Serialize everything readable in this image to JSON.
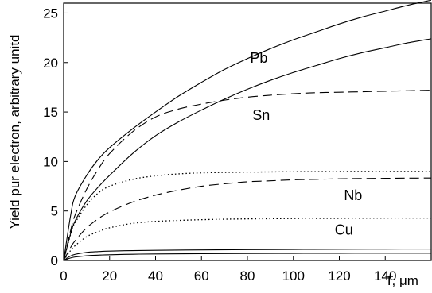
{
  "chart_data": {
    "type": "line",
    "title": "",
    "xlabel": "T, μm",
    "ylabel": "Yield pur electron, arbitrary unitd",
    "xlim": [
      0,
      160
    ],
    "ylim": [
      0,
      26
    ],
    "xticks": [
      "0",
      "20",
      "40",
      "60",
      "80",
      "100",
      "120",
      "140"
    ],
    "yticks": [
      "0",
      "5",
      "10",
      "15",
      "20",
      "25"
    ],
    "grid": false,
    "legend": "none",
    "labels": [
      {
        "text": "Pb",
        "x": 85,
        "y": 20.0
      },
      {
        "text": "Sn",
        "x": 86,
        "y": 14.2
      },
      {
        "text": "Nb",
        "x": 126,
        "y": 6.1
      },
      {
        "text": "Cu",
        "x": 122,
        "y": 2.6
      }
    ],
    "series": [
      {
        "style": "solid",
        "x": [
          0,
          3,
          5,
          10,
          15,
          20,
          30,
          40,
          50,
          60,
          70,
          80,
          90,
          100,
          110,
          120,
          130,
          140,
          150,
          160
        ],
        "y": [
          0,
          4.5,
          6.5,
          8.6,
          10.2,
          11.4,
          13.3,
          15.0,
          16.6,
          18.0,
          19.3,
          20.4,
          21.4,
          22.3,
          23.1,
          23.9,
          24.6,
          25.2,
          25.8,
          26.3
        ]
      },
      {
        "style": "solid",
        "x": [
          0,
          3,
          5,
          10,
          15,
          20,
          30,
          40,
          50,
          60,
          70,
          80,
          90,
          100,
          110,
          120,
          130,
          140,
          150,
          160
        ],
        "y": [
          0,
          2.7,
          4.0,
          6.0,
          7.4,
          8.6,
          10.8,
          12.6,
          14.0,
          15.2,
          16.3,
          17.3,
          18.2,
          19.0,
          19.7,
          20.4,
          21.0,
          21.5,
          22.0,
          22.4
        ]
      },
      {
        "style": "dashed",
        "x": [
          0,
          3,
          5,
          10,
          15,
          20,
          30,
          40,
          50,
          60,
          70,
          80,
          90,
          100,
          110,
          120,
          130,
          140,
          150,
          160
        ],
        "y": [
          0,
          3.0,
          4.6,
          7.2,
          9.2,
          10.8,
          13.0,
          14.5,
          15.3,
          15.8,
          16.2,
          16.5,
          16.7,
          16.85,
          16.95,
          17.0,
          17.05,
          17.1,
          17.15,
          17.2
        ]
      },
      {
        "style": "dotted",
        "x": [
          0,
          3,
          5,
          10,
          15,
          20,
          30,
          40,
          50,
          60,
          70,
          80,
          90,
          100,
          110,
          120,
          130,
          140,
          150,
          160
        ],
        "y": [
          0,
          2.6,
          3.8,
          5.6,
          6.8,
          7.5,
          8.2,
          8.55,
          8.75,
          8.85,
          8.9,
          8.93,
          8.95,
          8.97,
          8.98,
          8.99,
          9.0,
          9.0,
          9.0,
          9.0
        ]
      },
      {
        "style": "dashed",
        "x": [
          0,
          3,
          5,
          10,
          15,
          20,
          30,
          40,
          50,
          60,
          70,
          80,
          90,
          100,
          110,
          120,
          130,
          140,
          150,
          160
        ],
        "y": [
          0,
          1.3,
          2.0,
          3.3,
          4.2,
          4.9,
          5.9,
          6.6,
          7.1,
          7.5,
          7.75,
          7.95,
          8.05,
          8.15,
          8.2,
          8.25,
          8.28,
          8.3,
          8.32,
          8.33
        ]
      },
      {
        "style": "dotted",
        "x": [
          0,
          3,
          5,
          10,
          15,
          20,
          30,
          40,
          50,
          60,
          70,
          80,
          90,
          100,
          110,
          120,
          130,
          140,
          150,
          160
        ],
        "y": [
          0,
          1.0,
          1.5,
          2.4,
          2.9,
          3.3,
          3.75,
          3.95,
          4.05,
          4.12,
          4.17,
          4.2,
          4.22,
          4.24,
          4.25,
          4.26,
          4.27,
          4.28,
          4.28,
          4.28
        ]
      },
      {
        "style": "solid",
        "x": [
          0,
          3,
          5,
          10,
          15,
          20,
          30,
          40,
          60,
          80,
          100,
          120,
          140,
          160
        ],
        "y": [
          0,
          0.45,
          0.62,
          0.82,
          0.9,
          0.95,
          1.0,
          1.03,
          1.07,
          1.1,
          1.12,
          1.14,
          1.15,
          1.16
        ]
      },
      {
        "style": "solid",
        "x": [
          0,
          3,
          5,
          10,
          15,
          20,
          30,
          40,
          60,
          80,
          100,
          120,
          140,
          160
        ],
        "y": [
          0,
          0.25,
          0.35,
          0.48,
          0.54,
          0.58,
          0.63,
          0.66,
          0.69,
          0.71,
          0.72,
          0.73,
          0.74,
          0.74
        ]
      }
    ]
  }
}
